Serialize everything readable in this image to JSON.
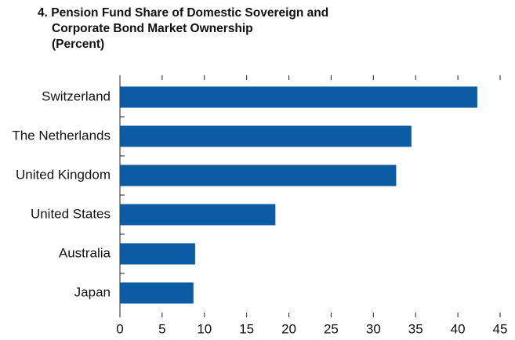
{
  "chart_data": {
    "type": "barh",
    "title": [
      "4. Pension Fund Share of Domestic Sovereign and",
      "Corporate Bond Market Ownership",
      "(Percent)"
    ],
    "categories": [
      "Switzerland",
      "The Netherlands",
      "United Kingdom",
      "United States",
      "Australia",
      "Japan"
    ],
    "values": [
      42.3,
      34.5,
      32.7,
      18.4,
      8.9,
      8.7
    ],
    "color": "#0b5ba5",
    "xlim": [
      0,
      45
    ],
    "xticks": [
      0,
      5,
      10,
      15,
      20,
      25,
      30,
      35,
      40,
      45
    ],
    "grid": false
  }
}
